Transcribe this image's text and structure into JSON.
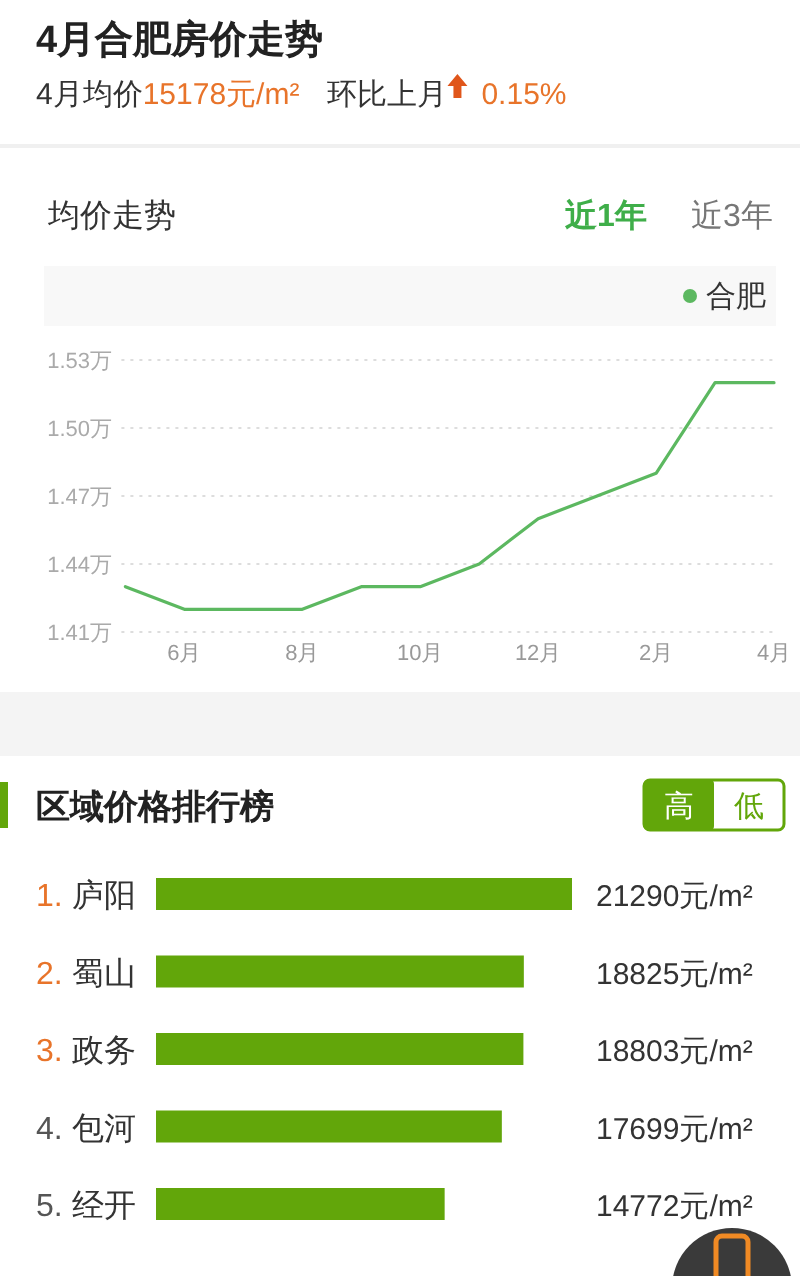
{
  "chart_data": [
    {
      "type": "other",
      "title": "4月合肥房价走势",
      "annotations": [
        "4月均价",
        "15178元/m²",
        "环比上月",
        "0.15%"
      ]
    },
    {
      "type": "line",
      "title": "均价走势",
      "annotations": [
        "近1年",
        "近3年"
      ],
      "categories": [
        null,
        "6月",
        null,
        "8月",
        null,
        "10月",
        null,
        "12月",
        null,
        "2月",
        null,
        "4月"
      ],
      "series": [
        {
          "name": "合肥",
          "color": "#5cb860",
          "values": [
            1.43,
            1.42,
            1.42,
            1.42,
            1.43,
            1.43,
            1.44,
            1.46,
            1.47,
            1.48,
            1.52,
            1.52
          ]
        }
      ],
      "ylim": [
        1.41,
        1.53
      ],
      "yticks": [
        {
          "value": 1.41,
          "label": "1.41万"
        },
        {
          "value": 1.44,
          "label": "1.44万"
        },
        {
          "value": 1.47,
          "label": "1.47万"
        },
        {
          "value": 1.5,
          "label": "1.50万"
        },
        {
          "value": 1.53,
          "label": "1.53万"
        }
      ],
      "grid": "y",
      "legend": "top right"
    },
    {
      "type": "bar",
      "orientation": "horizontal",
      "title": "区域价格排行榜",
      "annotations": [
        "高",
        "低"
      ],
      "categories": [
        "1. 庐阳",
        "2. 蜀山",
        "3. 政务",
        "4. 包河",
        "5. 经开"
      ],
      "values": [
        21290,
        18825,
        18803,
        17699,
        14772
      ],
      "color": "#62a60a",
      "value_labels": [
        "21290元/m²",
        "18825元/m²",
        "18803元/m²",
        "17699元/m²",
        "14772元/m²"
      ]
    }
  ]
}
